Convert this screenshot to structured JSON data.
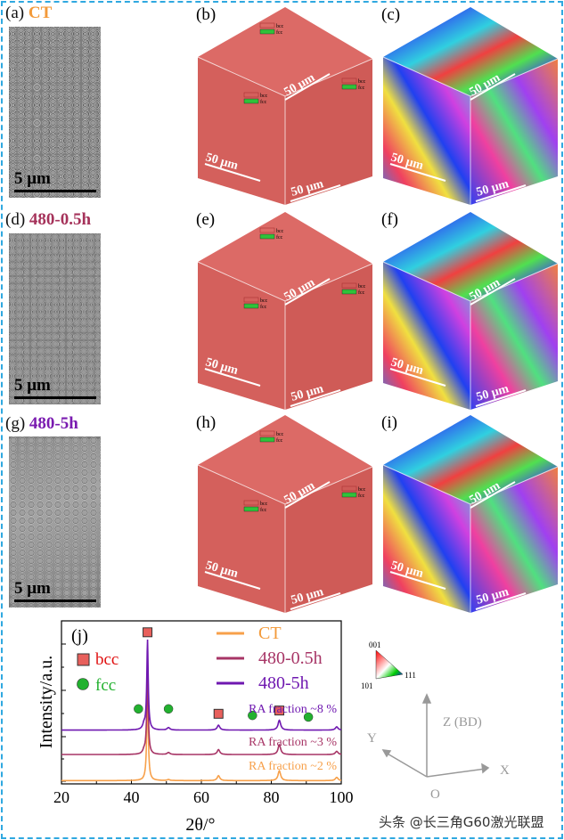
{
  "panels": {
    "a": {
      "tag": "(a)",
      "title": "CT",
      "color": "#f39a3a",
      "scale": "5 μm"
    },
    "b": {
      "tag": "(b)"
    },
    "c": {
      "tag": "(c)"
    },
    "d": {
      "tag": "(d)",
      "title": "480-0.5h",
      "color": "#a5325a",
      "scale": "5 μm"
    },
    "e": {
      "tag": "(e)"
    },
    "f": {
      "tag": "(f)"
    },
    "g": {
      "tag": "(g)",
      "title": "480-5h",
      "color": "#7a1bb0",
      "scale": "5 μm"
    },
    "h": {
      "tag": "(h)"
    },
    "i": {
      "tag": "(i)"
    },
    "j": {
      "tag": "(j)"
    }
  },
  "cube": {
    "scale": "50 μm",
    "legend_bcc": "bcc",
    "legend_fcc": "fcc",
    "phase_bcc_color": "#d9625f",
    "phase_fcc_color": "#2fc23a"
  },
  "ipf": {
    "c001": "001",
    "c101": "101",
    "c111": "111"
  },
  "axes": {
    "z": "Z (BD)",
    "y": "Y",
    "x": "X",
    "o": "O"
  },
  "watermark": "头条 @长三角G60激光联盟",
  "chart_data": {
    "type": "line",
    "xlabel": "2θ/°",
    "ylabel": "Intensity/a.u.",
    "xlim": [
      20,
      100
    ],
    "ylim": [
      0,
      100
    ],
    "xticks": [
      20,
      40,
      60,
      80,
      100
    ],
    "yticks_shown": false,
    "markers": {
      "bcc": {
        "label": "bcc",
        "color": "#e8605c",
        "x": [
          44.6,
          64.9,
          82.3
        ]
      },
      "fcc": {
        "label": "fcc",
        "color": "#22b12f",
        "x": [
          42.0,
          50.6,
          74.6,
          90.6
        ]
      }
    },
    "series": [
      {
        "name": "CT",
        "color": "#f7a04a",
        "baseline": 2,
        "annotation": "RA fraction ~2 %",
        "peaks": [
          [
            44.6,
            58
          ],
          [
            50.6,
            0.6
          ],
          [
            64.9,
            3
          ],
          [
            82.3,
            6
          ],
          [
            98.7,
            2
          ]
        ]
      },
      {
        "name": "480-0.5h",
        "color": "#a73566",
        "baseline": 18,
        "annotation": "RA fraction ~3 %",
        "peaks": [
          [
            43.6,
            2
          ],
          [
            44.6,
            53
          ],
          [
            50.6,
            1.2
          ],
          [
            64.9,
            3
          ],
          [
            82.3,
            6
          ],
          [
            98.7,
            2
          ]
        ]
      },
      {
        "name": "480-5h",
        "color": "#6f18b0",
        "baseline": 33,
        "annotation": "RA fraction ~8 %",
        "peaks": [
          [
            43.6,
            3
          ],
          [
            44.6,
            55
          ],
          [
            50.6,
            1.5
          ],
          [
            64.9,
            3
          ],
          [
            82.3,
            6
          ],
          [
            98.7,
            2
          ]
        ]
      }
    ]
  }
}
